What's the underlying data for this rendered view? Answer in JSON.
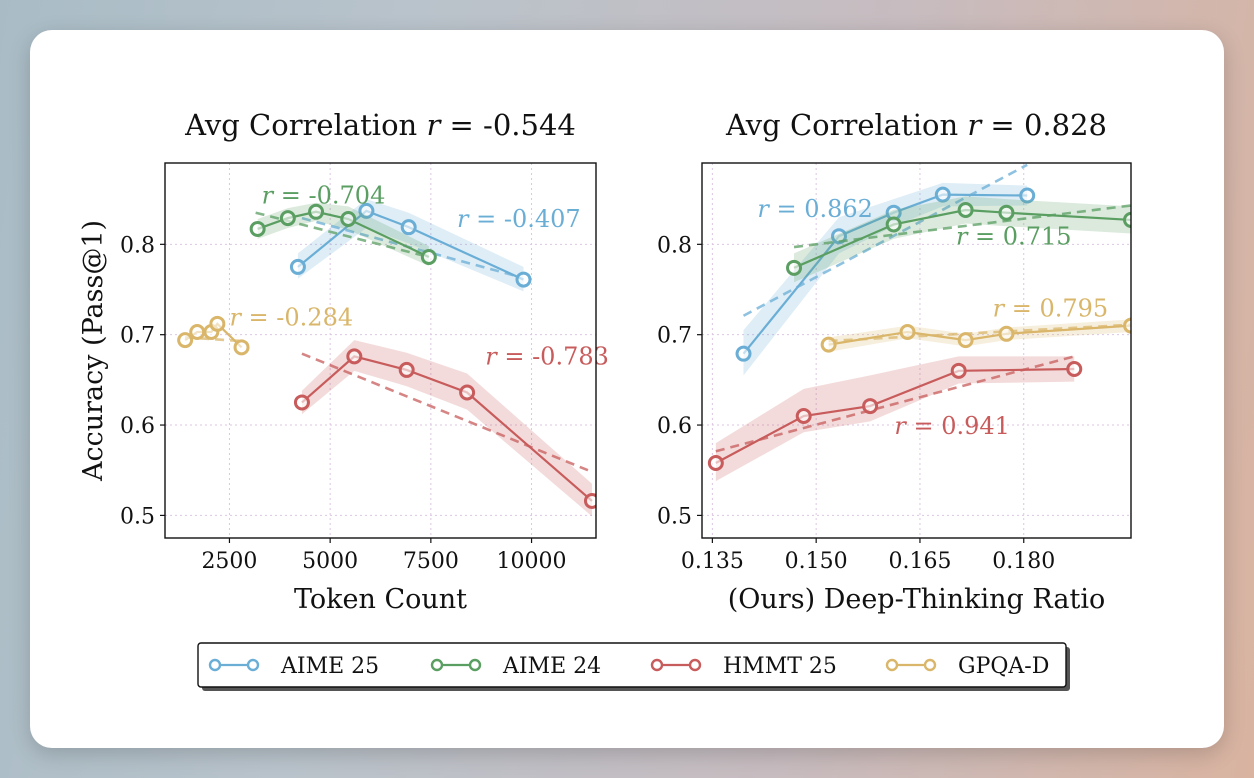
{
  "header_fragment": "",
  "chart_data": [
    {
      "type": "line",
      "title": "Avg Correlation r = -0.544",
      "title_prefix": "Avg Correlation ",
      "title_r": "r",
      "title_value": " = -0.544",
      "xlabel": "Token Count",
      "ylabel": "Accuracy (Pass@1)",
      "xlim": [
        900,
        11600
      ],
      "ylim": [
        0.475,
        0.89
      ],
      "xticks": [
        2500,
        5000,
        7500,
        10000
      ],
      "yticks": [
        0.5,
        0.6,
        0.7,
        0.8
      ],
      "grid": true,
      "series": [
        {
          "name": "AIME 25",
          "color": "#6aaed6",
          "r_label": " = -0.407",
          "label_at": [
            8150,
            0.819
          ],
          "label_anchor": "start",
          "x": [
            4200,
            5900,
            6950,
            9800
          ],
          "y": [
            0.775,
            0.837,
            0.819,
            0.761
          ],
          "band": {
            "upper": [
              0.79,
              0.85,
              0.835,
              0.775
            ],
            "lower": [
              0.762,
              0.818,
              0.801,
              0.748
            ]
          },
          "trend": [
            [
              4300,
              0.829
            ],
            [
              9700,
              0.764
            ]
          ]
        },
        {
          "name": "AIME 24",
          "color": "#5a9e62",
          "r_label": " = -0.704",
          "label_at": [
            3300,
            0.845
          ],
          "label_anchor": "start",
          "x": [
            3200,
            3950,
            4650,
            5450,
            7450
          ],
          "y": [
            0.817,
            0.829,
            0.836,
            0.828,
            0.786
          ],
          "band": {
            "upper": [
              0.828,
              0.84,
              0.846,
              0.842,
              0.798
            ],
            "lower": [
              0.806,
              0.818,
              0.826,
              0.816,
              0.776
            ]
          },
          "trend": [
            [
              3150,
              0.835
            ],
            [
              7450,
              0.786
            ]
          ]
        },
        {
          "name": "HMMT 25",
          "color": "#c85c5c",
          "r_label": " = -0.783",
          "label_at": [
            8850,
            0.667
          ],
          "label_anchor": "start",
          "x": [
            4300,
            5600,
            6900,
            8400,
            11500
          ],
          "y": [
            0.625,
            0.676,
            0.661,
            0.636,
            0.516
          ],
          "band": {
            "upper": [
              0.638,
              0.694,
              0.68,
              0.657,
              0.535
            ],
            "lower": [
              0.612,
              0.66,
              0.643,
              0.617,
              0.499
            ]
          },
          "trend": [
            [
              4300,
              0.679
            ],
            [
              11400,
              0.55
            ]
          ]
        },
        {
          "name": "GPQA-D",
          "color": "#d9b66a",
          "r_label": " = -0.284",
          "label_at": [
            2500,
            0.71
          ],
          "label_anchor": "start",
          "x": [
            1400,
            1700,
            2050,
            2200,
            2800
          ],
          "y": [
            0.694,
            0.703,
            0.703,
            0.712,
            0.686
          ],
          "band": null,
          "trend": [
            [
              1400,
              0.697
            ],
            [
              2800,
              0.693
            ]
          ]
        }
      ]
    },
    {
      "type": "line",
      "title": "Avg Correlation r = 0.828",
      "title_prefix": "Avg Correlation ",
      "title_r": "r",
      "title_value": " = 0.828",
      "xlabel": "(Ours) Deep-Thinking Ratio",
      "ylabel": "",
      "xlim": [
        0.1335,
        0.1955
      ],
      "ylim": [
        0.475,
        0.89
      ],
      "xticks": [
        0.135,
        0.15,
        0.165,
        0.18
      ],
      "xtick_labels": [
        "0.135",
        "0.150",
        "0.165",
        "0.180"
      ],
      "yticks": [
        0.5,
        0.6,
        0.7,
        0.8
      ],
      "grid": true,
      "series": [
        {
          "name": "AIME 25",
          "color": "#6aaed6",
          "r_label": " = 0.862",
          "label_at": [
            0.1415,
            0.83
          ],
          "label_anchor": "start",
          "x": [
            0.1395,
            0.1533,
            0.1612,
            0.1683,
            0.1805
          ],
          "y": [
            0.679,
            0.809,
            0.835,
            0.855,
            0.854
          ],
          "band": {
            "upper": [
              0.705,
              0.83,
              0.85,
              0.868,
              0.865
            ],
            "lower": [
              0.655,
              0.79,
              0.82,
              0.842,
              0.843
            ]
          },
          "trend": [
            [
              0.1395,
              0.721
            ],
            [
              0.1805,
              0.888
            ]
          ]
        },
        {
          "name": "AIME 24",
          "color": "#5a9e62",
          "r_label": " = 0.715",
          "label_at": [
            0.1702,
            0.8
          ],
          "label_anchor": "start",
          "x": [
            0.1468,
            0.1612,
            0.1716,
            0.1775,
            0.1955
          ],
          "y": [
            0.774,
            0.822,
            0.838,
            0.835,
            0.827
          ],
          "band": {
            "upper": [
              0.79,
              0.838,
              0.853,
              0.85,
              0.842
            ],
            "lower": [
              0.758,
              0.806,
              0.823,
              0.82,
              0.812
            ]
          },
          "trend": [
            [
              0.1468,
              0.797
            ],
            [
              0.1955,
              0.843
            ]
          ]
        },
        {
          "name": "HMMT 25",
          "color": "#c85c5c",
          "r_label": " = 0.941",
          "label_at": [
            0.1613,
            0.59
          ],
          "label_anchor": "start",
          "x": [
            0.1355,
            0.1482,
            0.1578,
            0.1706,
            0.1873
          ],
          "y": [
            0.558,
            0.61,
            0.621,
            0.66,
            0.662
          ],
          "band": {
            "upper": [
              0.58,
              0.64,
              0.655,
              0.676,
              0.676
            ],
            "lower": [
              0.538,
              0.592,
              0.604,
              0.646,
              0.648
            ]
          },
          "trend": [
            [
              0.1355,
              0.571
            ],
            [
              0.1873,
              0.676
            ]
          ]
        },
        {
          "name": "GPQA-D",
          "color": "#d9b66a",
          "r_label": " = 0.795",
          "label_at": [
            0.1755,
            0.72
          ],
          "label_anchor": "start",
          "x": [
            0.1518,
            0.1632,
            0.1716,
            0.1775,
            0.1955
          ],
          "y": [
            0.689,
            0.703,
            0.694,
            0.701,
            0.71
          ],
          "band": {
            "upper": [
              0.697,
              0.71,
              0.701,
              0.708,
              0.717
            ],
            "lower": [
              0.681,
              0.696,
              0.687,
              0.694,
              0.703
            ]
          },
          "trend": [
            [
              0.1518,
              0.693
            ],
            [
              0.1955,
              0.711
            ]
          ]
        }
      ]
    }
  ],
  "legend": [
    {
      "label": "AIME 25",
      "color": "#6aaed6"
    },
    {
      "label": "AIME 24",
      "color": "#5a9e62"
    },
    {
      "label": "HMMT 25",
      "color": "#c85c5c"
    },
    {
      "label": "GPQA-D",
      "color": "#d9b66a"
    }
  ]
}
